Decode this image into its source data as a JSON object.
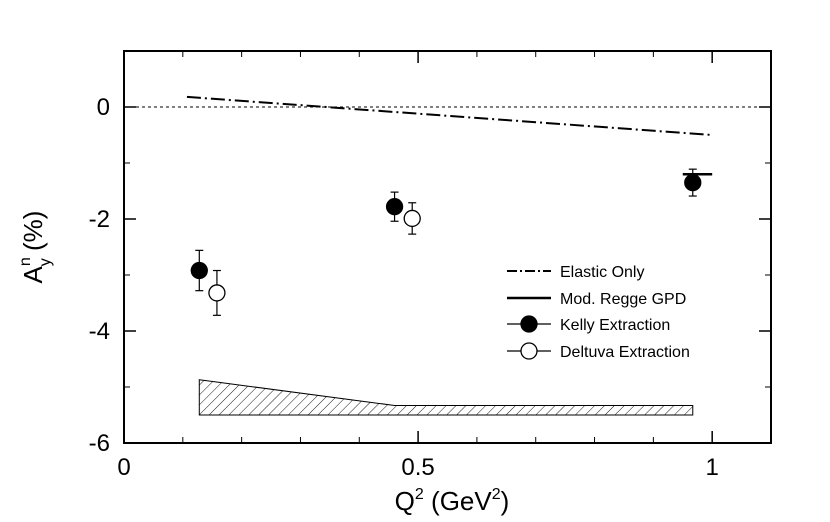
{
  "chart_data": {
    "type": "scatter",
    "xlabel": {
      "base": "Q",
      "sup": "2",
      "unit_open": " (GeV",
      "unit_sup": "2",
      "unit_close": ")"
    },
    "ylabel": {
      "base": "A",
      "sup": "n",
      "sub": "y",
      "rest": " (%)"
    },
    "xlim": [
      0,
      1.1
    ],
    "ylim": [
      -6,
      1
    ],
    "x_ticks": [
      {
        "value": 0,
        "label": "0"
      },
      {
        "value": 0.5,
        "label": "0.5"
      },
      {
        "value": 1,
        "label": "1"
      }
    ],
    "y_ticks": [
      {
        "value": 0,
        "label": "0"
      },
      {
        "value": -2,
        "label": "-2"
      },
      {
        "value": -4,
        "label": "-4"
      },
      {
        "value": -6,
        "label": "-6"
      }
    ],
    "zero_line": 0,
    "series": [
      {
        "name": "Elastic Only",
        "style": "dash-dot",
        "points": [
          [
            0.107,
            0.18
          ],
          [
            1.0,
            -0.5
          ]
        ]
      },
      {
        "name": "Mod. Regge GPD",
        "style": "solid",
        "points": [
          [
            0.95,
            -1.2
          ],
          [
            1.0,
            -1.2
          ]
        ]
      },
      {
        "name": "Kelly Extraction",
        "marker": "filled-circle",
        "points": [
          {
            "x": 0.128,
            "y": -2.92,
            "err": 0.36
          },
          {
            "x": 0.46,
            "y": -1.78,
            "err": 0.26
          },
          {
            "x": 0.967,
            "y": -1.35,
            "err": 0.24
          }
        ]
      },
      {
        "name": "Deltuva Extraction",
        "marker": "open-circle",
        "points": [
          {
            "x": 0.158,
            "y": -3.32,
            "err": 0.4
          },
          {
            "x": 0.49,
            "y": -1.99,
            "err": 0.28
          }
        ]
      }
    ],
    "systematic_band": {
      "lower": -5.5,
      "upper": [
        [
          0.128,
          -4.87
        ],
        [
          0.46,
          -5.33
        ],
        [
          0.967,
          -5.33
        ]
      ]
    },
    "legend": {
      "position": "right-middle",
      "entries": [
        "Elastic Only",
        "Mod. Regge GPD",
        "Kelly Extraction",
        "Deltuva Extraction"
      ]
    },
    "grid": false
  }
}
